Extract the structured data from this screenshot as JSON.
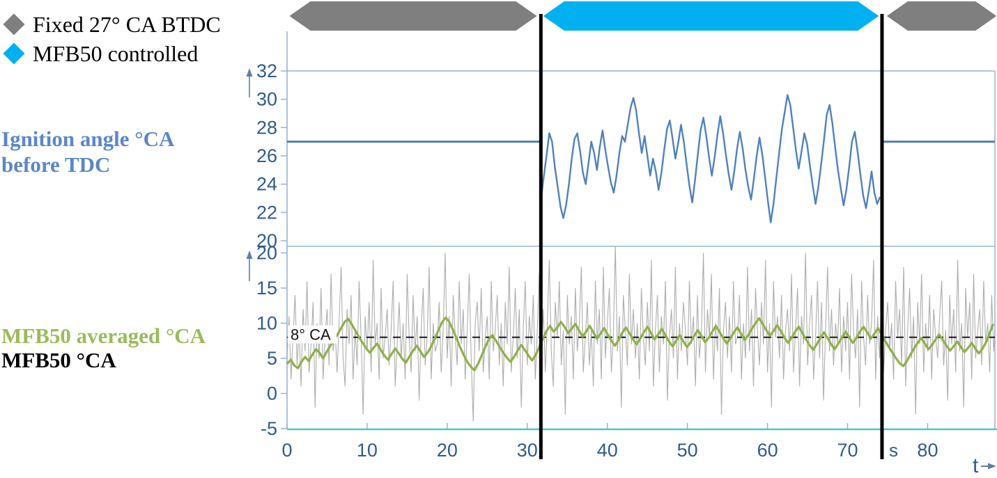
{
  "legend": {
    "items": [
      {
        "marker": "diamond-icon",
        "color": "#7F7F7F",
        "label": "Fixed 27° CA BTDC"
      },
      {
        "marker": "diamond-icon",
        "color": "#00B0F0",
        "label": "MFB50 controlled"
      }
    ]
  },
  "labels": {
    "top_chart_line1": "Ignition angle °CA",
    "top_chart_line2": "before TDC",
    "bottom_chart_avg": "MFB50 averaged °CA",
    "bottom_chart_raw": "MFB50 °CA",
    "time_axis": "t",
    "time_unit": "s"
  },
  "colors": {
    "signal_blue": "#4F81BD",
    "caption_blue": "#5B87C9",
    "green_line": "#8FB04A",
    "green_label": "#9BBB59",
    "gray_noise": "#ADADAD",
    "banner_gray": "#7F7F7F",
    "banner_cyan": "#00B0F0",
    "axis_text": "#2E5B8F",
    "frame": "#95B3D7",
    "x_axis_cyan": "#4FC1E0",
    "event_line": "#000000",
    "arrow": "#5F7FA8",
    "reference_black": "#1A1A1A"
  },
  "timeline": {
    "phases": [
      {
        "label": "Fixed 27° CA BTDC",
        "color_key": "banner_gray",
        "t_start": 0.3,
        "t_end": 31.2
      },
      {
        "label": "MFB50 controlled",
        "color_key": "banner_cyan",
        "t_start": 32.0,
        "t_end": 73.9
      },
      {
        "label": "Fixed 27° CA BTDC",
        "color_key": "banner_gray",
        "t_start": 74.9,
        "t_end": 88.6
      }
    ]
  },
  "chart_data": [
    {
      "type": "line",
      "title": "Ignition angle °CA before TDC",
      "ylim": [
        20,
        32
      ],
      "yticks": [
        20,
        22,
        24,
        26,
        28,
        30,
        32
      ],
      "xlim": [
        0,
        88.4
      ],
      "event_lines_t": [
        31.7,
        74.3
      ],
      "series": [
        {
          "name": "Fixed ignition angle 27° CA BTDC",
          "value": 27,
          "segments_t": [
            [
              0,
              31.7
            ],
            [
              74.3,
              88.4
            ]
          ]
        },
        {
          "name": "MFB50-controlled ignition angle",
          "t0": 31.7,
          "dt": 0.35,
          "values": [
            22.8,
            24.5,
            26,
            27.6,
            27,
            25.2,
            23.8,
            22.4,
            21.6,
            22.5,
            24,
            25.8,
            27.2,
            27.6,
            26.3,
            24.8,
            24,
            25.5,
            27,
            26.2,
            25,
            26.6,
            27.8,
            26.4,
            25.2,
            24.1,
            23.4,
            24.6,
            26.2,
            27.4,
            27,
            28.2,
            29.4,
            30.1,
            29.2,
            27.6,
            26.2,
            27.4,
            26,
            24.6,
            25.8,
            24.9,
            23.6,
            24.8,
            26.4,
            27.9,
            28.5,
            27.2,
            25.8,
            26.9,
            28.2,
            27,
            25.4,
            23.9,
            22.7,
            24.3,
            26.1,
            27.8,
            28.7,
            27.4,
            25.9,
            24.6,
            25.9,
            27.5,
            28.8,
            27.6,
            26.1,
            24.7,
            23.6,
            24.9,
            26.5,
            27.7,
            26.5,
            25,
            23.8,
            22.9,
            24.4,
            26,
            27.3,
            26.1,
            24.5,
            22.8,
            21.3,
            22.6,
            24.4,
            26.2,
            27.9,
            29.1,
            30.3,
            29.6,
            28,
            26.4,
            25.1,
            26.3,
            27.6,
            26.8,
            25.3,
            23.9,
            22.6,
            23.8,
            25.4,
            27.1,
            28.9,
            29.6,
            28.3,
            26.6,
            25,
            23.7,
            22.5,
            23.6,
            25.2,
            27,
            27.7,
            26.3,
            24.7,
            23.2,
            22.3,
            23.5,
            24.9,
            23.4,
            22.6,
            23.1
          ]
        }
      ]
    },
    {
      "type": "line",
      "title": "MFB50 °CA",
      "ylim": [
        -5,
        21
      ],
      "yticks": [
        -5,
        0,
        5,
        10,
        15,
        20
      ],
      "xlim": [
        0,
        88.4
      ],
      "xticks": [
        0,
        10,
        20,
        30,
        40,
        50,
        60,
        70,
        80
      ],
      "x_unit": "s",
      "xlabel": "t",
      "reference_line": {
        "value": 8,
        "label": "8° CA",
        "style": "dashed"
      },
      "event_lines_t": [
        31.7,
        74.3
      ],
      "series": [
        {
          "name": "MFB50 raw",
          "color_key": "gray_noise",
          "t0": 0,
          "dt": 0.25,
          "values": [
            5,
            11,
            2,
            8,
            14,
            4,
            9,
            1,
            12,
            6,
            16,
            3,
            7,
            13,
            -2,
            10,
            5,
            15,
            2,
            8,
            12,
            4,
            17,
            6,
            9,
            3,
            10,
            18,
            5,
            1,
            12,
            7,
            14,
            2,
            9,
            4,
            16,
            8,
            -3,
            11,
            6,
            13,
            3,
            19,
            7,
            10,
            2,
            15,
            5,
            8,
            12,
            4,
            9,
            16,
            1,
            7,
            13,
            5,
            10,
            2,
            17,
            8,
            3,
            14,
            6,
            11,
            -1,
            9,
            15,
            4,
            8,
            18,
            2,
            10,
            6,
            7,
            13,
            3,
            9,
            20,
            5,
            11,
            1,
            14,
            8,
            4,
            16,
            7,
            12,
            2,
            9,
            17,
            5,
            -4,
            10,
            13,
            6,
            15,
            3,
            8,
            11,
            2,
            16,
            6,
            9,
            14,
            4,
            10,
            1,
            13,
            7,
            18,
            3,
            8,
            15,
            5,
            12,
            -2,
            9,
            16,
            4,
            11,
            7,
            14,
            2,
            9,
            17,
            5,
            12,
            3,
            10,
            19,
            6,
            1,
            13,
            8,
            16,
            4,
            9,
            -3,
            14,
            7,
            11,
            2,
            15,
            6,
            10,
            18,
            3,
            8,
            13,
            4,
            9,
            1,
            16,
            7,
            12,
            2,
            18,
            5,
            10,
            15,
            3,
            8,
            21,
            6,
            11,
            -2,
            14,
            9,
            4,
            17,
            7,
            12,
            5,
            10,
            2,
            15,
            8,
            4,
            13,
            6,
            19,
            1,
            9,
            14,
            3,
            11,
            7,
            16,
            -1,
            8,
            12,
            5,
            18,
            2,
            10,
            6,
            13,
            9,
            4,
            16,
            7,
            11,
            1,
            14,
            5,
            9,
            20,
            3,
            12,
            8,
            17,
            2,
            10,
            6,
            15,
            -3,
            9,
            13,
            5,
            11,
            3,
            16,
            7,
            8,
            14,
            2,
            10,
            5,
            18,
            6,
            12,
            1,
            15,
            9,
            4,
            13,
            7,
            19,
            3,
            10,
            -2,
            16,
            8,
            11,
            5,
            14,
            2,
            9,
            12,
            6,
            17,
            3,
            9,
            15,
            1,
            11,
            7,
            20,
            4,
            10,
            14,
            2,
            8,
            16,
            5,
            13,
            -1,
            9,
            18,
            6,
            12,
            4,
            10,
            7,
            15,
            3,
            11,
            6,
            13,
            2,
            17,
            9,
            5,
            12,
            -2,
            16,
            8,
            4,
            14,
            7,
            10,
            19,
            2,
            11,
            5,
            15,
            3,
            9,
            13,
            6,
            10,
            2,
            16,
            8,
            12,
            4,
            18,
            1,
            9,
            15,
            5,
            11,
            -3,
            13,
            7,
            17,
            3,
            10,
            6,
            14,
            2,
            12,
            8,
            5,
            11,
            16,
            4,
            9,
            -1,
            14,
            7,
            12,
            3,
            19,
            6,
            10,
            -2,
            15,
            8,
            13,
            2,
            17,
            5,
            9,
            12,
            4,
            16,
            7,
            10,
            3,
            14,
            6,
            11
          ]
        },
        {
          "name": "MFB50 averaged",
          "color_key": "green_line",
          "t0": 0,
          "dt": 0.45,
          "values": [
            4.2,
            4.8,
            4,
            3.6,
            4.5,
            5.2,
            4.6,
            5.5,
            6.3,
            5.8,
            5,
            5.9,
            6.8,
            7.6,
            8.4,
            9.3,
            10.2,
            10.6,
            9.8,
            8.9,
            8,
            7.2,
            6.4,
            5.8,
            6.5,
            7.1,
            6.2,
            5.4,
            4.8,
            5.6,
            6.4,
            5.7,
            4.9,
            4.4,
            5.3,
            6.1,
            6.8,
            6,
            5.2,
            5.8,
            6.7,
            7.8,
            9,
            10.1,
            10.8,
            10.2,
            9.1,
            7.9,
            6.6,
            5.5,
            4.5,
            3.8,
            3.3,
            4.2,
            5.4,
            6.6,
            7.7,
            8.3,
            7.5,
            6.6,
            5.8,
            5.1,
            4.5,
            5.2,
            6.1,
            6.9,
            6.2,
            5.4,
            4.7,
            5.5,
            6.6,
            7.8,
            8.9,
            9.6,
            8.8,
            9.4,
            10.2,
            9.5,
            8.6,
            9.2,
            9.9,
            9,
            8.1,
            8.8,
            9.6,
            8.7,
            7.8,
            8.5,
            9.3,
            8.4,
            7.5,
            6.8,
            7.6,
            8.6,
            9.4,
            8.6,
            7.7,
            7,
            7.8,
            8.7,
            9.5,
            8.6,
            7.7,
            8.4,
            9.2,
            8.3,
            7.4,
            6.7,
            7.5,
            8.3,
            7.4,
            6.6,
            7.3,
            8.2,
            9,
            8.2,
            7.3,
            7.9,
            8.8,
            9.6,
            8.8,
            7.9,
            7.1,
            7.8,
            8.7,
            9.4,
            8.5,
            7.6,
            8.3,
            9.2,
            10,
            10.7,
            9.9,
            9,
            8.2,
            8.9,
            9.7,
            8.9,
            8,
            7.2,
            7.9,
            8.8,
            9.5,
            8.6,
            7.7,
            6.9,
            6.2,
            7,
            7.9,
            8.7,
            7.9,
            7,
            6.3,
            7.1,
            8,
            8.8,
            8,
            7.2,
            7.9,
            8.8,
            9.5,
            8.7,
            7.8,
            8.5,
            9.3,
            8.4,
            7.5,
            6.6,
            5.8,
            5,
            4.3,
            3.9,
            4.6,
            5.5,
            6.4,
            7.2,
            7.9,
            7.1,
            6.3,
            6.9,
            7.7,
            8.4,
            7.6,
            6.8,
            6.1,
            6.7,
            7.4,
            6.6,
            5.9,
            6.5,
            7.2,
            6.4,
            5.7,
            6.4,
            7.3,
            8.6,
            9.9
          ]
        }
      ]
    }
  ]
}
